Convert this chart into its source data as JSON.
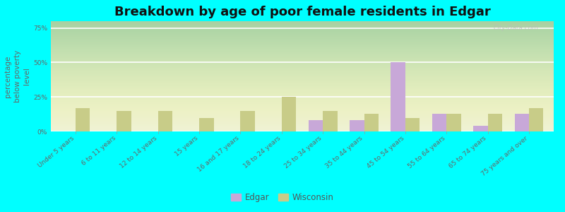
{
  "title": "Breakdown by age of poor female residents in Edgar",
  "ylabel": "percentage\nbelow poverty\nlevel",
  "background_color": "#00ffff",
  "plot_bg_color": "#f0f2dc",
  "categories": [
    "Under 5 years",
    "6 to 11 years",
    "12 to 14 years",
    "15 years",
    "16 and 17 years",
    "18 to 24 years",
    "25 to 34 years",
    "35 to 44 years",
    "45 to 54 years",
    "55 to 64 years",
    "65 to 74 years",
    "75 years and over"
  ],
  "edgar_values": [
    0,
    0,
    0,
    0,
    0,
    0,
    8,
    8,
    50,
    13,
    4,
    13
  ],
  "wisconsin_values": [
    17,
    15,
    15,
    10,
    15,
    25,
    15,
    13,
    10,
    13,
    13,
    17
  ],
  "edgar_color": "#c8a8d8",
  "wisconsin_color": "#c8cc88",
  "ylim": [
    0,
    80
  ],
  "yticks": [
    0,
    25,
    50,
    75
  ],
  "ytick_labels": [
    "0%",
    "25%",
    "50%",
    "75%"
  ],
  "bar_width": 0.35,
  "title_fontsize": 13,
  "axis_label_fontsize": 7.5,
  "tick_fontsize": 6.5,
  "legend_fontsize": 8.5
}
